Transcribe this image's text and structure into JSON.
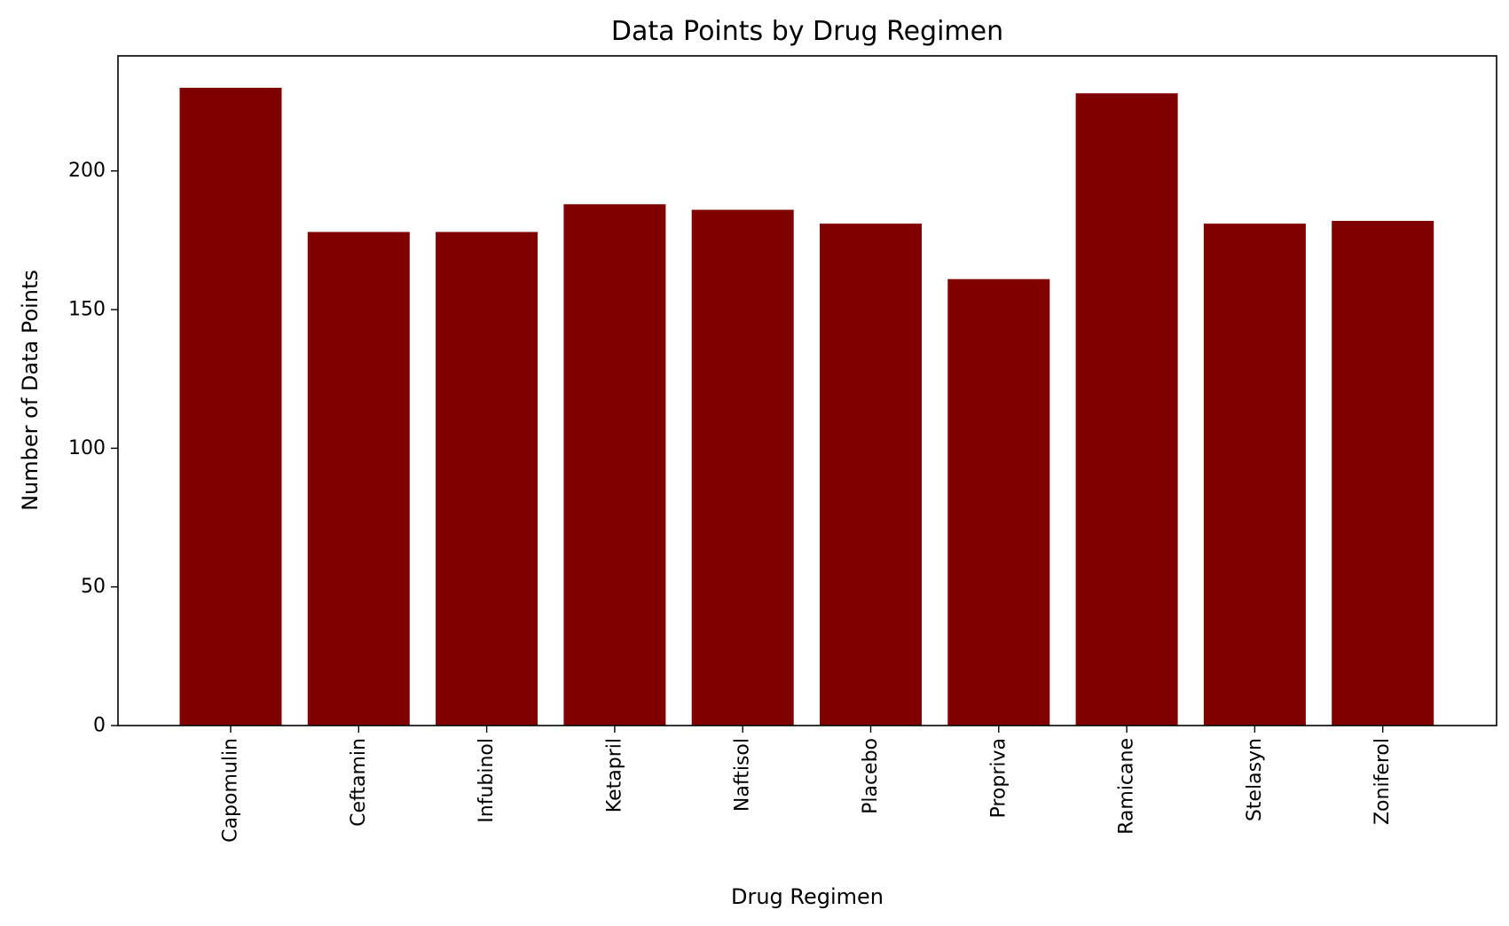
{
  "chart_data": {
    "type": "bar",
    "title": "Data Points by Drug Regimen",
    "xlabel": "Drug Regimen",
    "ylabel": "Number of Data Points",
    "categories": [
      "Capomulin",
      "Ceftamin",
      "Infubinol",
      "Ketapril",
      "Naftisol",
      "Placebo",
      "Propriva",
      "Ramicane",
      "Stelasyn",
      "Zoniferol"
    ],
    "values": [
      230,
      178,
      178,
      188,
      186,
      181,
      161,
      228,
      181,
      182
    ],
    "ylim": [
      0,
      241.5
    ],
    "yticks": [
      0,
      50,
      100,
      150,
      200
    ],
    "bar_color": "#800000",
    "grid": false,
    "legend": "none"
  }
}
